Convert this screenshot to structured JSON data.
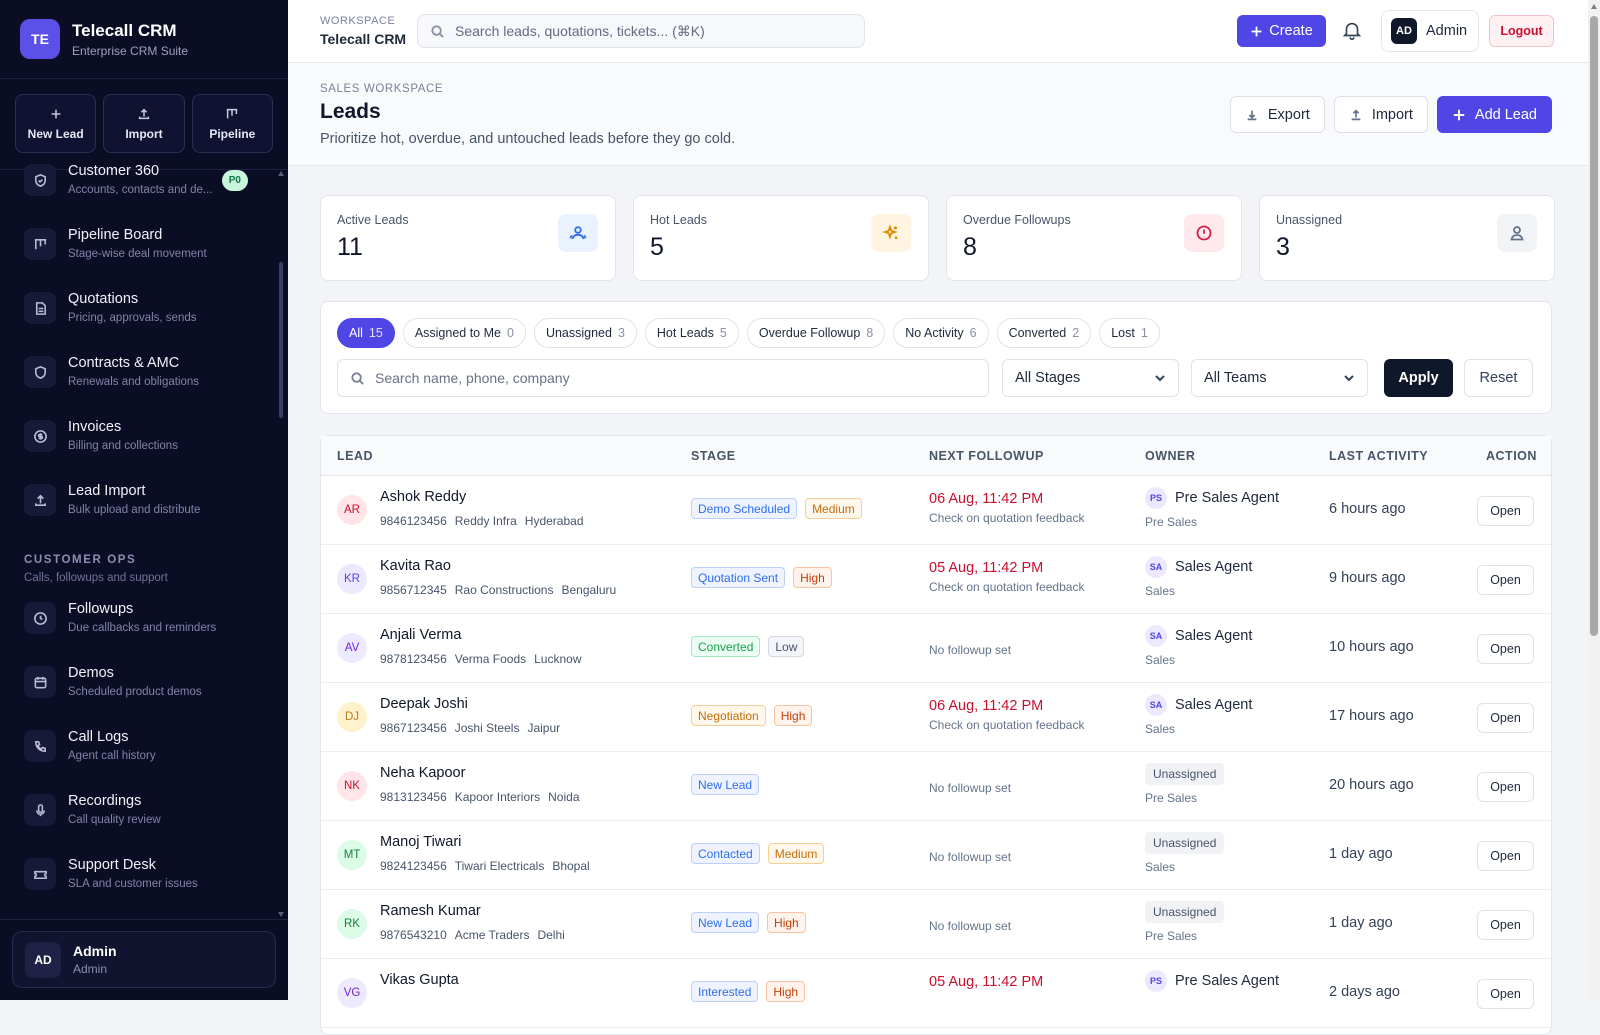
{
  "brand": {
    "initials": "TE",
    "name": "Telecall CRM",
    "subtitle": "Enterprise CRM Suite"
  },
  "quick_actions": [
    {
      "label": "New Lead",
      "icon": "plus-icon"
    },
    {
      "label": "Import",
      "icon": "upload-icon"
    },
    {
      "label": "Pipeline",
      "icon": "pipeline-icon"
    }
  ],
  "nav": {
    "items_top": [
      {
        "title": "Customer 360",
        "sub": "Accounts, contacts and de...",
        "badge": "P0",
        "icon": "shield-check-icon"
      },
      {
        "title": "Pipeline Board",
        "sub": "Stage-wise deal movement",
        "icon": "kanban-icon"
      },
      {
        "title": "Quotations",
        "sub": "Pricing, approvals, sends",
        "icon": "document-icon"
      },
      {
        "title": "Contracts & AMC",
        "sub": "Renewals and obligations",
        "icon": "shield-icon"
      },
      {
        "title": "Invoices",
        "sub": "Billing and collections",
        "icon": "currency-icon"
      },
      {
        "title": "Lead Import",
        "sub": "Bulk upload and distribute",
        "icon": "upload-icon"
      }
    ],
    "section": {
      "title": "CUSTOMER OPS",
      "sub": "Calls, followups and support"
    },
    "items_ops": [
      {
        "title": "Followups",
        "sub": "Due callbacks and reminders",
        "icon": "clock-icon"
      },
      {
        "title": "Demos",
        "sub": "Scheduled product demos",
        "icon": "calendar-icon"
      },
      {
        "title": "Call Logs",
        "sub": "Agent call history",
        "icon": "phone-icon"
      },
      {
        "title": "Recordings",
        "sub": "Call quality review",
        "icon": "microphone-icon"
      },
      {
        "title": "Support Desk",
        "sub": "SLA and customer issues",
        "icon": "ticket-icon"
      }
    ]
  },
  "sidebar_user": {
    "initials": "AD",
    "name": "Admin",
    "role": "Admin"
  },
  "topbar": {
    "workspace_label": "WORKSPACE",
    "workspace_name": "Telecall CRM",
    "search_placeholder": "Search leads, quotations, tickets... (⌘K)",
    "create_label": "Create",
    "admin_initials": "AD",
    "admin_name": "Admin",
    "logout_label": "Logout"
  },
  "page": {
    "eyebrow": "SALES WORKSPACE",
    "title": "Leads",
    "description": "Prioritize hot, overdue, and untouched leads before they go cold.",
    "export_label": "Export",
    "import_label": "Import",
    "add_label": "Add Lead"
  },
  "stats": [
    {
      "label": "Active Leads",
      "value": "11",
      "icon": "users-icon",
      "bg": "#eaf1ff",
      "color": "#2f6fed"
    },
    {
      "label": "Hot Leads",
      "value": "5",
      "icon": "sparkle-icon",
      "bg": "#fff4e0",
      "color": "#e08a00"
    },
    {
      "label": "Overdue Followups",
      "value": "8",
      "icon": "alert-circle-icon",
      "bg": "#ffe9ed",
      "color": "#d61f45"
    },
    {
      "label": "Unassigned",
      "value": "3",
      "icon": "user-icon",
      "bg": "#f1f3f7",
      "color": "#64748b"
    }
  ],
  "filter_chips": [
    {
      "label": "All",
      "count": "15",
      "active": true
    },
    {
      "label": "Assigned to Me",
      "count": "0"
    },
    {
      "label": "Unassigned",
      "count": "3"
    },
    {
      "label": "Hot Leads",
      "count": "5"
    },
    {
      "label": "Overdue Followup",
      "count": "8"
    },
    {
      "label": "No Activity",
      "count": "6"
    },
    {
      "label": "Converted",
      "count": "2"
    },
    {
      "label": "Lost",
      "count": "1"
    }
  ],
  "filters": {
    "search_placeholder": "Search name, phone, company",
    "stage_selected": "All Stages",
    "team_selected": "All Teams",
    "apply_label": "Apply",
    "reset_label": "Reset"
  },
  "table": {
    "columns": [
      "LEAD",
      "STAGE",
      "NEXT FOLLOWUP",
      "OWNER",
      "LAST ACTIVITY",
      "ACTION"
    ],
    "rows": [
      {
        "initials": "AR",
        "av_bg": "#ffe4e8",
        "av_fg": "#c8102e",
        "name": "Ashok Reddy",
        "phone": "9846123456",
        "company": "Reddy Infra",
        "city": "Hyderabad",
        "stage": "Demo Scheduled",
        "priority": "Medium",
        "followup_date": "06 Aug, 11:42 PM",
        "followup_note": "Check on quotation feedback",
        "owner_initials": "PS",
        "owner": "Pre Sales Agent",
        "team": "Pre Sales",
        "last": "6 hours ago",
        "action": "Open"
      },
      {
        "initials": "KR",
        "av_bg": "#ece9ff",
        "av_fg": "#4f46e5",
        "name": "Kavita Rao",
        "phone": "9856712345",
        "company": "Rao Constructions",
        "city": "Bengaluru",
        "stage": "Quotation Sent",
        "priority": "High",
        "followup_date": "05 Aug, 11:42 PM",
        "followup_note": "Check on quotation feedback",
        "owner_initials": "SA",
        "owner": "Sales Agent",
        "team": "Sales",
        "last": "9 hours ago",
        "action": "Open"
      },
      {
        "initials": "AV",
        "av_bg": "#ede9fe",
        "av_fg": "#6d28d9",
        "name": "Anjali Verma",
        "phone": "9878123456",
        "company": "Verma Foods",
        "city": "Lucknow",
        "stage": "Converted",
        "priority": "Low",
        "followup_none": "No followup set",
        "owner_initials": "SA",
        "owner": "Sales Agent",
        "team": "Sales",
        "last": "10 hours ago",
        "action": "Open"
      },
      {
        "initials": "DJ",
        "av_bg": "#fff1cc",
        "av_fg": "#b7791f",
        "name": "Deepak Joshi",
        "phone": "9867123456",
        "company": "Joshi Steels",
        "city": "Jaipur",
        "stage": "Negotiation",
        "priority": "High",
        "followup_date": "06 Aug, 11:42 PM",
        "followup_note": "Check on quotation feedback",
        "owner_initials": "SA",
        "owner": "Sales Agent",
        "team": "Sales",
        "last": "17 hours ago",
        "action": "Open"
      },
      {
        "initials": "NK",
        "av_bg": "#ffe4ea",
        "av_fg": "#c8102e",
        "name": "Neha Kapoor",
        "phone": "9813123456",
        "company": "Kapoor Interiors",
        "city": "Noida",
        "stage": "New Lead",
        "priority": "",
        "followup_none": "No followup set",
        "owner_unassigned": "Unassigned",
        "team": "Pre Sales",
        "last": "20 hours ago",
        "action": "Open"
      },
      {
        "initials": "MT",
        "av_bg": "#dcfce7",
        "av_fg": "#15803d",
        "name": "Manoj Tiwari",
        "phone": "9824123456",
        "company": "Tiwari Electricals",
        "city": "Bhopal",
        "stage": "Contacted",
        "priority": "Medium",
        "followup_none": "No followup set",
        "owner_unassigned": "Unassigned",
        "team": "Sales",
        "last": "1 day ago",
        "action": "Open"
      },
      {
        "initials": "RK",
        "av_bg": "#dcfce7",
        "av_fg": "#15803d",
        "name": "Ramesh Kumar",
        "phone": "9876543210",
        "company": "Acme Traders",
        "city": "Delhi",
        "stage": "New Lead",
        "priority": "High",
        "followup_none": "No followup set",
        "owner_unassigned": "Unassigned",
        "team": "Pre Sales",
        "last": "1 day ago",
        "action": "Open"
      },
      {
        "initials": "VG",
        "av_bg": "#ede9fe",
        "av_fg": "#6d28d9",
        "name": "Vikas Gupta",
        "phone": "",
        "company": "",
        "city": "",
        "stage": "Interested",
        "priority": "High",
        "followup_date": "05 Aug, 11:42 PM",
        "followup_note": "",
        "owner_initials": "PS",
        "owner": "Pre Sales Agent",
        "team": "",
        "last": "2 days ago",
        "action": "Open"
      }
    ]
  },
  "colors": {
    "accent": "#4f46e5",
    "sidebar_bg": "#0b0d24",
    "danger": "#c8102e",
    "stage_blue": "#2f6fed",
    "stage_green": "#16a34a",
    "priority_orange": "#d97706"
  }
}
